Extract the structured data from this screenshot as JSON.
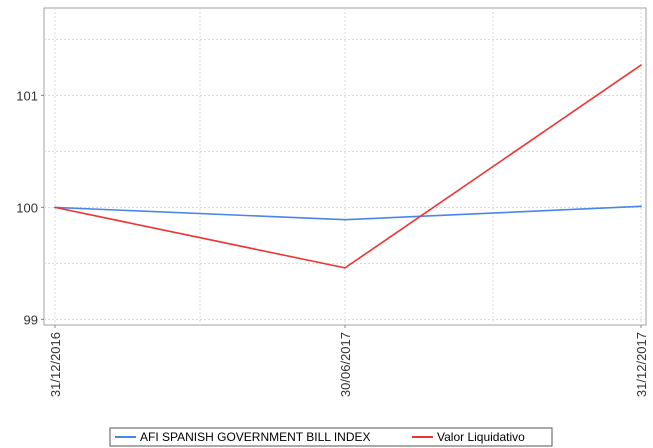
{
  "chart_data": {
    "type": "line",
    "x": [
      "31/12/2016",
      "30/06/2017",
      "31/12/2017"
    ],
    "series": [
      {
        "name": "AFI SPANISH GOVERNMENT BILL INDEX",
        "color": "#4a86e8",
        "values": [
          100,
          99.89,
          100.01
        ]
      },
      {
        "name": "Valor Liquidativo",
        "color": "#ee3333",
        "values": [
          100,
          99.46,
          101.27
        ]
      }
    ],
    "ylim": [
      98.95,
      101.78
    ],
    "y_ticks": [
      "99",
      "100",
      "101"
    ],
    "grid": true,
    "legend": "bottom-center"
  }
}
